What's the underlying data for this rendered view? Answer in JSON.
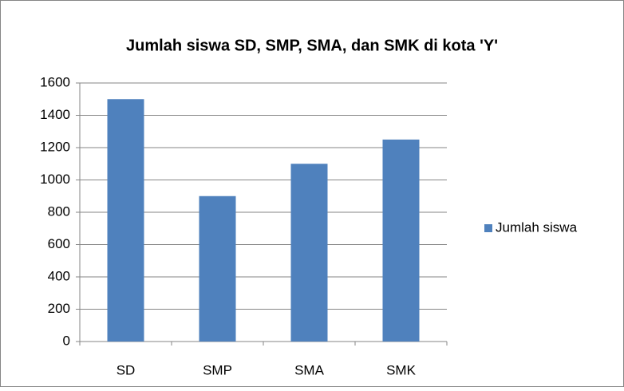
{
  "chart_data": {
    "type": "bar",
    "title": "Jumlah siswa SD, SMP, SMA, dan SMK di kota 'Y'",
    "categories": [
      "SD",
      "SMP",
      "SMA",
      "SMK"
    ],
    "series": [
      {
        "name": "Jumlah siswa",
        "color": "#4f81bd",
        "values": [
          1500,
          900,
          1100,
          1250
        ]
      }
    ],
    "ylim": [
      0,
      1600
    ],
    "yticks": [
      0,
      200,
      400,
      600,
      800,
      1000,
      1200,
      1400,
      1600
    ],
    "grid": true,
    "legend": "right"
  }
}
